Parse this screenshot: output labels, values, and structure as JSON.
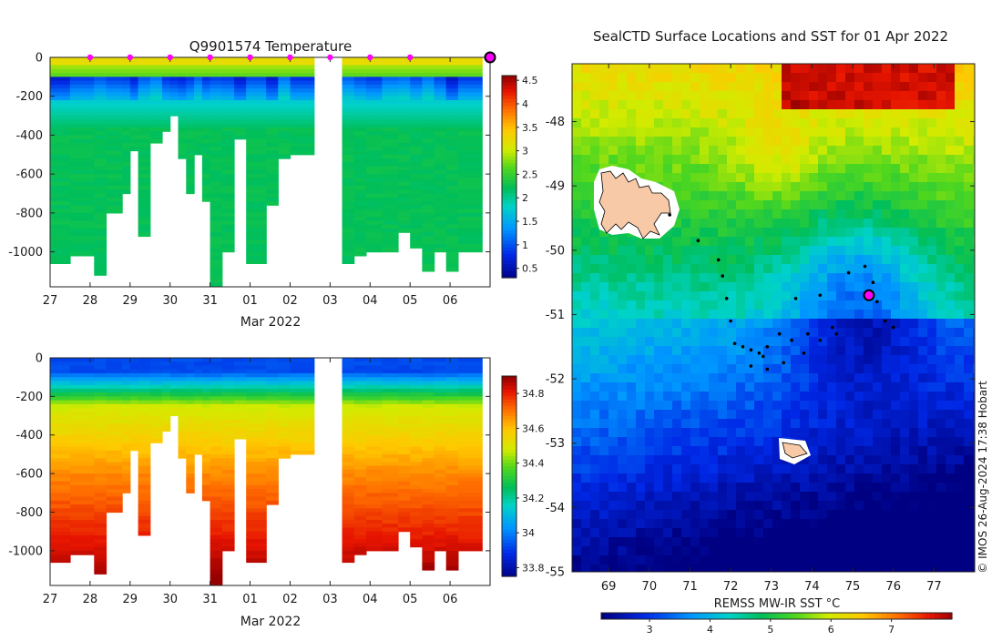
{
  "chart_data": [
    {
      "type": "heatmap",
      "id": "temperature-profile",
      "title": "Q9901574  Temperature",
      "xlabel": "Mar 2022",
      "x_ticks": [
        "27",
        "28",
        "29",
        "30",
        "31",
        "01",
        "02",
        "03",
        "04",
        "05",
        "06"
      ],
      "xlim": [
        27,
        38
      ],
      "ylim": [
        -1180,
        0
      ],
      "y_ticks": [
        0,
        -200,
        -400,
        -600,
        -800,
        -1000
      ],
      "y_tick_labels": [
        "0",
        "-200",
        "-400",
        "-600",
        "-800",
        "-1000"
      ],
      "colorbar": {
        "min": 0.3,
        "max": 4.6,
        "ticks": [
          "0.5",
          "1",
          "1.5",
          "2",
          "2.5",
          "3",
          "3.5",
          "4",
          "4.5"
        ],
        "values": [
          0.5,
          1,
          1.5,
          2,
          2.5,
          3,
          3.5,
          4,
          4.5
        ]
      },
      "profile_marker_days": [
        28.0,
        29.0,
        30.0,
        31.0,
        32.0,
        33.0,
        34.0,
        35.0,
        36.0
      ],
      "last_profile_day": 38.0,
      "profile_depths": [
        [
          27.0,
          -1060
        ],
        [
          27.5,
          -1020
        ],
        [
          28.1,
          -1110
        ],
        [
          28.4,
          -800
        ],
        [
          28.8,
          -700
        ],
        [
          29.0,
          -470
        ],
        [
          29.2,
          -920
        ],
        [
          29.5,
          -440
        ],
        [
          29.8,
          -370
        ],
        [
          30.0,
          -300
        ],
        [
          30.2,
          -520
        ],
        [
          30.4,
          -700
        ],
        [
          30.6,
          -500
        ],
        [
          30.8,
          -740
        ],
        [
          31.0,
          -1180
        ],
        [
          31.3,
          -1000
        ],
        [
          31.6,
          -420
        ],
        [
          31.9,
          -1060
        ],
        [
          32.4,
          -750
        ],
        [
          32.7,
          -510
        ],
        [
          33.0,
          -500
        ],
        [
          33.6,
          0
        ],
        [
          34.3,
          -1050
        ],
        [
          34.6,
          -1020
        ],
        [
          34.9,
          -1000
        ],
        [
          35.3,
          -1000
        ],
        [
          35.7,
          -900
        ],
        [
          36.0,
          -980
        ],
        [
          36.3,
          -1090
        ],
        [
          36.6,
          -1000
        ],
        [
          36.9,
          -1100
        ],
        [
          37.2,
          -1000
        ]
      ]
    },
    {
      "type": "heatmap",
      "id": "salinity-profile",
      "title": "",
      "xlabel": "Mar 2022",
      "x_ticks": [
        "27",
        "28",
        "29",
        "30",
        "31",
        "01",
        "02",
        "03",
        "04",
        "05",
        "06"
      ],
      "xlim": [
        27,
        38
      ],
      "ylim": [
        -1180,
        0
      ],
      "y_ticks": [
        0,
        -200,
        -400,
        -600,
        -800,
        -1000
      ],
      "y_tick_labels": [
        "0",
        "-200",
        "-400",
        "-600",
        "-800",
        "-1000"
      ],
      "colorbar": {
        "min": 33.75,
        "max": 34.9,
        "ticks": [
          "33.8",
          "34",
          "34.2",
          "34.4",
          "34.6",
          "34.8"
        ],
        "values": [
          33.8,
          34.0,
          34.2,
          34.4,
          34.6,
          34.8
        ]
      }
    },
    {
      "type": "heatmap",
      "id": "sst-map",
      "title": "SealCTD Surface Locations and SST for 01 Apr 2022",
      "xlim": [
        68.1,
        78.0
      ],
      "ylim": [
        -55.0,
        -47.1
      ],
      "x_ticks": [
        "69",
        "70",
        "71",
        "72",
        "73",
        "74",
        "75",
        "76",
        "77"
      ],
      "x_tick_values": [
        69,
        70,
        71,
        72,
        73,
        74,
        75,
        76,
        77
      ],
      "y_ticks": [
        "-48",
        "-49",
        "-50",
        "-51",
        "-52",
        "-53",
        "-54",
        "-55"
      ],
      "y_tick_values": [
        -48,
        -49,
        -50,
        -51,
        -52,
        -53,
        -54,
        -55
      ],
      "colorbar": {
        "label": "REMSS MW-IR SST °C",
        "min": 2.2,
        "max": 8.0,
        "ticks": [
          "3",
          "4",
          "5",
          "6",
          "7"
        ],
        "values": [
          3,
          4,
          5,
          6,
          7
        ]
      },
      "current_position": [
        75.4,
        -50.7
      ],
      "surface_locations": [
        [
          70.5,
          -49.45
        ],
        [
          71.2,
          -49.85
        ],
        [
          71.7,
          -50.15
        ],
        [
          71.8,
          -50.4
        ],
        [
          71.9,
          -50.75
        ],
        [
          72.0,
          -51.1
        ],
        [
          72.1,
          -51.45
        ],
        [
          72.3,
          -51.5
        ],
        [
          72.5,
          -51.55
        ],
        [
          72.7,
          -51.6
        ],
        [
          72.8,
          -51.65
        ],
        [
          72.9,
          -51.5
        ],
        [
          73.2,
          -51.3
        ],
        [
          73.5,
          -51.4
        ],
        [
          73.9,
          -51.3
        ],
        [
          74.2,
          -51.4
        ],
        [
          74.6,
          -51.3
        ],
        [
          73.6,
          -50.75
        ],
        [
          74.2,
          -50.7
        ],
        [
          74.9,
          -50.35
        ],
        [
          75.3,
          -50.25
        ],
        [
          75.5,
          -50.5
        ],
        [
          75.6,
          -50.8
        ],
        [
          75.8,
          -51.1
        ],
        [
          76.0,
          -51.2
        ],
        [
          72.5,
          -51.8
        ],
        [
          72.9,
          -51.85
        ],
        [
          73.3,
          -51.75
        ],
        [
          73.8,
          -51.6
        ],
        [
          74.5,
          -51.2
        ]
      ],
      "copyright": "© IMOS 26-Aug-2024 17:38 Hobart"
    }
  ]
}
